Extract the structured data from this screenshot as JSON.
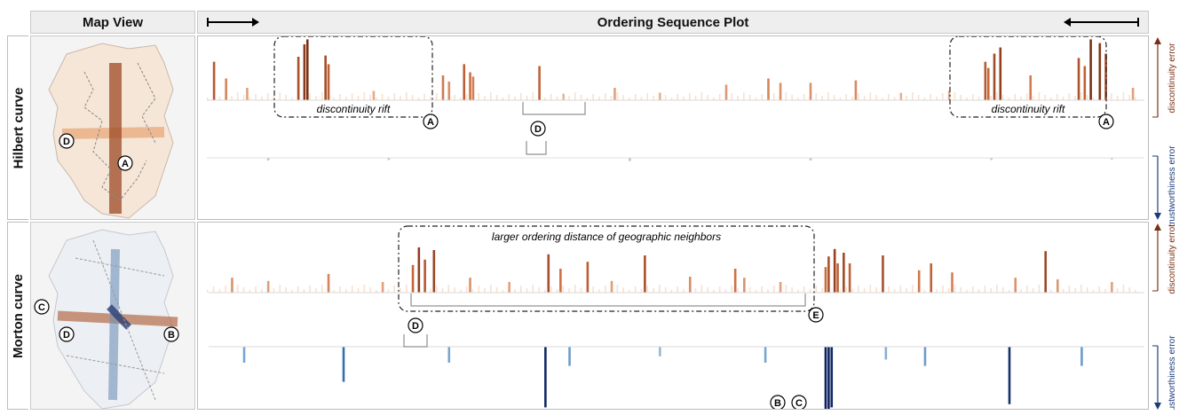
{
  "headers": {
    "map_view": "Map View",
    "sequence_plot": "Ordering Sequence Plot"
  },
  "rows": {
    "hilbert": "Hilbert curve",
    "morton": "Morton curve"
  },
  "axis_labels": {
    "discontinuity": "discontinuity error",
    "trustworthiness": "trustworthiness error"
  },
  "annotations": {
    "discontinuity_rift": "discontinuity rift",
    "larger_distance": "larger ordering distance of geographic neighbors"
  },
  "markers": {
    "A": "A",
    "B": "B",
    "C": "C",
    "D": "D",
    "E": "E"
  },
  "colors": {
    "discontinuity_high": "#7a2e14",
    "discontinuity_mid": "#c8683a",
    "discontinuity_low": "#f2c8a6",
    "trustworthiness_high": "#0c1f5c",
    "trustworthiness_mid": "#3b78b5",
    "trustworthiness_low": "#b9d3e6",
    "header_bg": "#eeeeee"
  },
  "chart_data": [
    {
      "type": "bar",
      "row": "Hilbert curve",
      "series": [
        {
          "name": "discontinuity error",
          "points": [
            [
              2,
              0.62
            ],
            [
              6,
              0.35
            ],
            [
              13,
              0.2
            ],
            [
              30,
              0.7
            ],
            [
              32,
              0.9
            ],
            [
              33,
              0.98
            ],
            [
              39,
              0.72
            ],
            [
              40,
              0.58
            ],
            [
              55,
              0.15
            ],
            [
              78,
              0.4
            ],
            [
              80,
              0.3
            ],
            [
              85,
              0.58
            ],
            [
              87,
              0.45
            ],
            [
              88,
              0.38
            ],
            [
              110,
              0.55
            ],
            [
              118,
              0.1
            ],
            [
              135,
              0.2
            ],
            [
              150,
              0.12
            ],
            [
              172,
              0.25
            ],
            [
              186,
              0.35
            ],
            [
              190,
              0.28
            ],
            [
              200,
              0.28
            ],
            [
              215,
              0.32
            ],
            [
              230,
              0.12
            ],
            [
              246,
              0.15
            ],
            [
              258,
              0.62
            ],
            [
              259,
              0.52
            ],
            [
              261,
              0.75
            ],
            [
              263,
              0.85
            ],
            [
              273,
              0.4
            ],
            [
              289,
              0.68
            ],
            [
              291,
              0.55
            ],
            [
              293,
              0.98
            ],
            [
              296,
              0.92
            ],
            [
              298,
              0.75
            ],
            [
              307,
              0.2
            ]
          ]
        },
        {
          "name": "trustworthiness error",
          "points": [
            [
              20,
              0.05
            ],
            [
              60,
              0.04
            ],
            [
              140,
              0.06
            ],
            [
              200,
              0.05
            ],
            [
              260,
              0.04
            ],
            [
              300,
              0.03
            ]
          ]
        }
      ]
    },
    {
      "type": "bar",
      "row": "Morton curve",
      "series": [
        {
          "name": "discontinuity error",
          "points": [
            [
              8,
              0.28
            ],
            [
              20,
              0.22
            ],
            [
              40,
              0.35
            ],
            [
              58,
              0.2
            ],
            [
              68,
              0.52
            ],
            [
              70,
              0.85
            ],
            [
              72,
              0.62
            ],
            [
              75,
              0.8
            ],
            [
              87,
              0.28
            ],
            [
              100,
              0.2
            ],
            [
              113,
              0.72
            ],
            [
              117,
              0.45
            ],
            [
              126,
              0.58
            ],
            [
              134,
              0.22
            ],
            [
              145,
              0.7
            ],
            [
              160,
              0.3
            ],
            [
              175,
              0.45
            ],
            [
              178,
              0.28
            ],
            [
              190,
              0.2
            ],
            [
              205,
              0.48
            ],
            [
              206,
              0.68
            ],
            [
              208,
              0.82
            ],
            [
              209,
              0.55
            ],
            [
              211,
              0.75
            ],
            [
              213,
              0.55
            ],
            [
              224,
              0.7
            ],
            [
              236,
              0.42
            ],
            [
              240,
              0.55
            ],
            [
              247,
              0.38
            ],
            [
              268,
              0.28
            ],
            [
              278,
              0.78
            ],
            [
              282,
              0.25
            ],
            [
              300,
              0.2
            ]
          ]
        },
        {
          "name": "trustworthiness error",
          "points": [
            [
              12,
              0.25
            ],
            [
              45,
              0.55
            ],
            [
              80,
              0.25
            ],
            [
              112,
              0.95
            ],
            [
              120,
              0.3
            ],
            [
              150,
              0.15
            ],
            [
              185,
              0.25
            ],
            [
              205,
              1.0
            ],
            [
              206,
              0.98
            ],
            [
              207,
              0.95
            ],
            [
              225,
              0.2
            ],
            [
              238,
              0.3
            ],
            [
              266,
              0.9
            ],
            [
              290,
              0.3
            ]
          ]
        }
      ]
    }
  ]
}
